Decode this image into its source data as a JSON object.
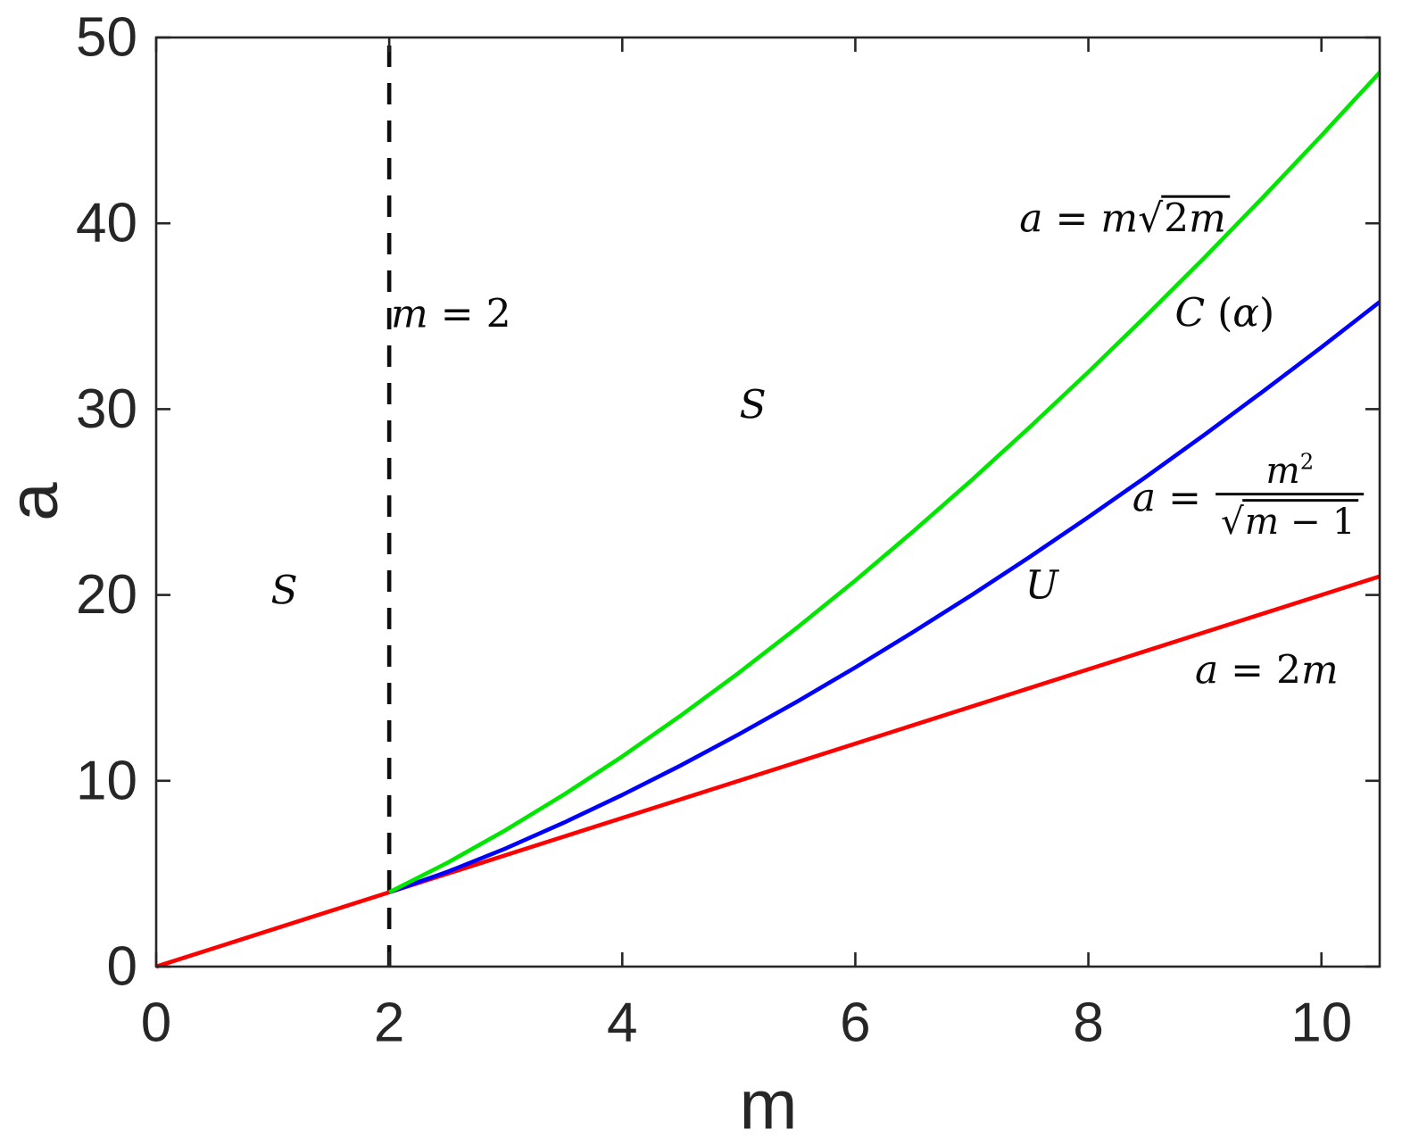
{
  "figure": {
    "background": "#ffffff",
    "axis_color": "#262626",
    "text_color": "#0a0a0a"
  },
  "chart_data": {
    "type": "line",
    "title": "",
    "xlabel": "m",
    "ylabel": "a",
    "xlim": [
      0,
      10.5
    ],
    "ylim": [
      0,
      50
    ],
    "xticks": [
      0,
      2,
      4,
      6,
      8,
      10
    ],
    "yticks": [
      0,
      10,
      20,
      30,
      40,
      50
    ],
    "grid": false,
    "legend": "none",
    "series": [
      {
        "key": "red-line",
        "name": "a = 2m",
        "color": "#ff0000",
        "dash": false,
        "x": [
          0,
          10.5
        ],
        "y": [
          0,
          21
        ]
      },
      {
        "key": "blue-curve",
        "name": "a = m^2/sqrt(m-1)",
        "color": "#0000ff",
        "dash": false,
        "x": [
          2,
          2.5,
          3,
          3.5,
          4,
          4.5,
          5,
          5.5,
          6,
          6.5,
          7,
          7.5,
          8,
          8.5,
          9,
          9.5,
          10,
          10.5
        ],
        "y": [
          4,
          5.1,
          6.36,
          7.75,
          9.24,
          10.82,
          12.5,
          14.26,
          16.1,
          18.02,
          20,
          22.06,
          24.19,
          26.38,
          28.64,
          30.96,
          33.33,
          35.77
        ]
      },
      {
        "key": "green-curve",
        "name": "a = m*sqrt(2m)",
        "color": "#00e600",
        "dash": false,
        "x": [
          2,
          2.5,
          3,
          3.5,
          4,
          4.5,
          5,
          5.5,
          6,
          6.5,
          7,
          7.5,
          8,
          8.5,
          9,
          9.5,
          10,
          10.5
        ],
        "y": [
          4,
          5.59,
          7.35,
          9.26,
          11.31,
          13.5,
          15.81,
          18.24,
          20.78,
          23.44,
          26.19,
          29.05,
          32,
          35.05,
          38.18,
          41.41,
          44.72,
          48.12
        ]
      },
      {
        "key": "m-eq-2-dashed-line",
        "name": "m = 2",
        "color": "#0d0d0d",
        "dash": true,
        "x": [
          2,
          2
        ],
        "y": [
          0,
          50
        ]
      }
    ],
    "annotations": [
      {
        "name": "label-a-eq-m-sqrt-2m",
        "m": 8.31,
        "a": 40.25,
        "segments": [
          {
            "t": "a",
            "s": "it"
          },
          {
            "t": " = ",
            "s": "up"
          },
          {
            "t": "m",
            "s": "it"
          },
          {
            "s": "sqrt",
            "parts": [
              {
                "t": "2",
                "s": "up"
              },
              {
                "t": "m",
                "s": "it"
              }
            ]
          }
        ]
      },
      {
        "name": "label-C-alpha",
        "m": 9.17,
        "a": 35.1,
        "segments": [
          {
            "t": "C",
            "s": "it"
          },
          {
            "t": " (",
            "s": "up"
          },
          {
            "t": "α",
            "s": "it"
          },
          {
            "t": ")",
            "s": "up"
          }
        ]
      },
      {
        "name": "label-m-eq-2",
        "m": 2.53,
        "a": 35.06,
        "segments": [
          {
            "t": "m",
            "s": "it"
          },
          {
            "t": " = 2",
            "s": "up"
          }
        ]
      },
      {
        "name": "label-S-upper",
        "m": 5.12,
        "a": 30.16,
        "segments": [
          {
            "t": "S",
            "s": "it"
          }
        ]
      },
      {
        "name": "label-S-left",
        "m": 1.1,
        "a": 20.17,
        "segments": [
          {
            "t": "S",
            "s": "it"
          }
        ]
      },
      {
        "name": "label-a-eq-m2-over-sqrt-m-1",
        "m": 9.38,
        "a": 25.07,
        "segments": [
          {
            "t": "a",
            "s": "it"
          },
          {
            "t": " = ",
            "s": "up"
          },
          {
            "s": "frac",
            "num": [
              {
                "t": "m",
                "s": "it"
              },
              {
                "t": "2",
                "s": "sup"
              }
            ],
            "den": [
              {
                "s": "sqrt",
                "parts": [
                  {
                    "t": "m",
                    "s": "it"
                  },
                  {
                    "t": " − 1",
                    "s": "up"
                  }
                ]
              }
            ]
          }
        ]
      },
      {
        "name": "label-U",
        "m": 7.6,
        "a": 20.46,
        "segments": [
          {
            "t": "U",
            "s": "it"
          }
        ]
      },
      {
        "name": "label-a-eq-2m",
        "m": 9.53,
        "a": 15.9,
        "segments": [
          {
            "t": "a",
            "s": "it"
          },
          {
            "t": " = 2",
            "s": "up"
          },
          {
            "t": "m",
            "s": "it"
          }
        ]
      }
    ]
  }
}
